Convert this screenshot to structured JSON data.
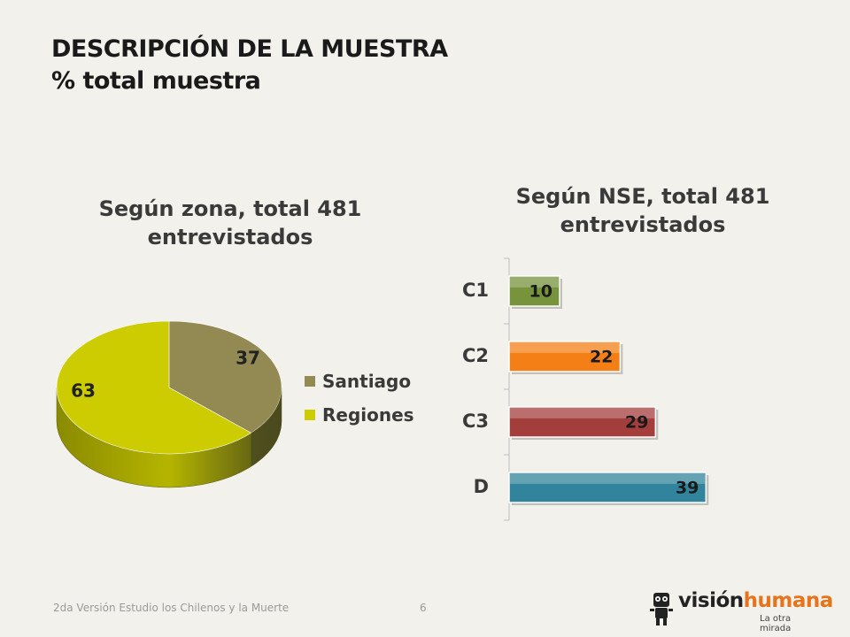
{
  "header": {
    "title_line1": "DESCRIPCIÓN DE LA MUESTRA",
    "title_line2": "% total muestra"
  },
  "pie": {
    "title_line1": "Según zona, total 481",
    "title_line2": "entrevistados",
    "legend": [
      {
        "label": "Santiago",
        "color": "#938953"
      },
      {
        "label": "Regiones",
        "color": "#cccc00"
      }
    ]
  },
  "bars": {
    "title_line1": "Según NSE, total 481",
    "title_line2": "entrevistados"
  },
  "footer": {
    "text": "2da Versión Estudio los Chilenos y la Muerte",
    "page": "6"
  },
  "logo": {
    "word1": "visión",
    "word2": "humana",
    "tagline": "La otra mirada"
  },
  "chart_data": [
    {
      "type": "pie",
      "title": "Según zona, total 481 entrevistados",
      "categories": [
        "Santiago",
        "Regiones"
      ],
      "values": [
        37,
        63
      ],
      "colors": [
        "#938953",
        "#cccc00"
      ],
      "legend": "right"
    },
    {
      "type": "bar",
      "orientation": "horizontal",
      "title": "Según NSE, total 481 entrevistados",
      "categories": [
        "C1",
        "C2",
        "C3",
        "D"
      ],
      "values": [
        10,
        22,
        29,
        39
      ],
      "colors": [
        "#77933c",
        "#f57f17",
        "#a33e3c",
        "#31849b"
      ]
    }
  ]
}
